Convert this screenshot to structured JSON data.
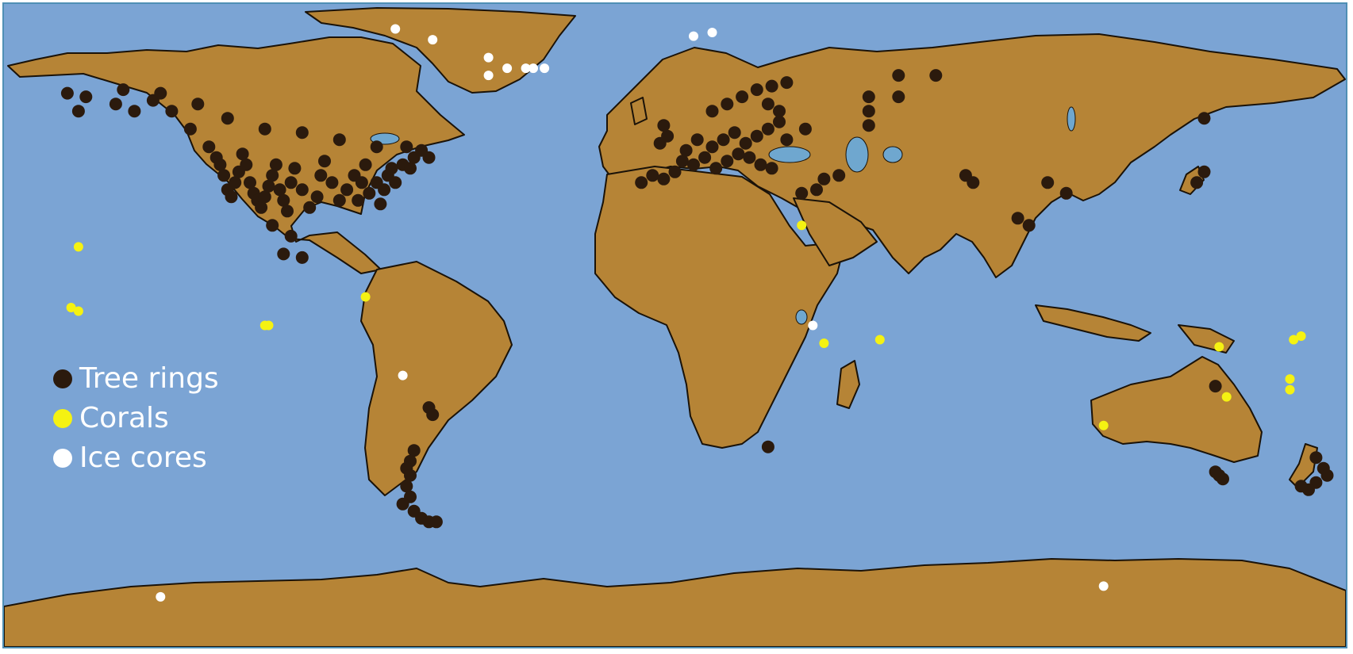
{
  "colors": {
    "ocean": "#7ba4d4",
    "land": "#b68436",
    "coast": "#1a1208",
    "lake": "#6fa7cf",
    "frame": "#4f8fb5"
  },
  "legend": {
    "items": [
      {
        "key": "tree_rings",
        "label": "Tree rings",
        "color": "#2b1a0d"
      },
      {
        "key": "corals",
        "label": "Corals",
        "color": "#f5f212"
      },
      {
        "key": "ice_cores",
        "label": "Ice cores",
        "color": "#ffffff"
      }
    ]
  },
  "chart_data": {
    "type": "scatter",
    "projection": "equirectangular",
    "series": [
      {
        "name": "Tree rings",
        "points": [
          [
            -160,
            60
          ],
          [
            -150,
            62
          ],
          [
            -145,
            60
          ],
          [
            -140,
            63
          ],
          [
            -135,
            60
          ],
          [
            -130,
            55
          ],
          [
            -125,
            50
          ],
          [
            -123,
            47
          ],
          [
            -122,
            45
          ],
          [
            -121,
            42
          ],
          [
            -120,
            38
          ],
          [
            -119,
            36
          ],
          [
            -118,
            40
          ],
          [
            -117,
            43
          ],
          [
            -116,
            48
          ],
          [
            -115,
            45
          ],
          [
            -114,
            40
          ],
          [
            -113,
            37
          ],
          [
            -112,
            35
          ],
          [
            -111,
            33
          ],
          [
            -110,
            36
          ],
          [
            -109,
            39
          ],
          [
            -108,
            42
          ],
          [
            -107,
            45
          ],
          [
            -106,
            38
          ],
          [
            -105,
            35
          ],
          [
            -104,
            32
          ],
          [
            -103,
            40
          ],
          [
            -102,
            44
          ],
          [
            -100,
            38
          ],
          [
            -98,
            33
          ],
          [
            -96,
            36
          ],
          [
            -95,
            42
          ],
          [
            -94,
            46
          ],
          [
            -92,
            40
          ],
          [
            -90,
            35
          ],
          [
            -88,
            38
          ],
          [
            -86,
            42
          ],
          [
            -85,
            35
          ],
          [
            -84,
            40
          ],
          [
            -83,
            45
          ],
          [
            -82,
            37
          ],
          [
            -80,
            40
          ],
          [
            -79,
            34
          ],
          [
            -78,
            38
          ],
          [
            -77,
            42
          ],
          [
            -76,
            44
          ],
          [
            -75,
            40
          ],
          [
            -73,
            45
          ],
          [
            -71,
            44
          ],
          [
            -70,
            47
          ],
          [
            -68,
            49
          ],
          [
            -66,
            47
          ],
          [
            -72,
            50
          ],
          [
            -80,
            50
          ],
          [
            -90,
            52
          ],
          [
            -100,
            54
          ],
          [
            -110,
            55
          ],
          [
            -120,
            58
          ],
          [
            -128,
            62
          ],
          [
            -138,
            65
          ],
          [
            -148,
            66
          ],
          [
            -158,
            64
          ],
          [
            -163,
            65
          ],
          [
            -105,
            20
          ],
          [
            -100,
            19
          ],
          [
            -103,
            25
          ],
          [
            -108,
            28
          ],
          [
            -9,
            40
          ],
          [
            -6,
            42
          ],
          [
            -3,
            41
          ],
          [
            0,
            43
          ],
          [
            2,
            46
          ],
          [
            5,
            45
          ],
          [
            8,
            47
          ],
          [
            11,
            44
          ],
          [
            14,
            46
          ],
          [
            17,
            48
          ],
          [
            20,
            47
          ],
          [
            23,
            45
          ],
          [
            26,
            44
          ],
          [
            10,
            50
          ],
          [
            13,
            52
          ],
          [
            16,
            54
          ],
          [
            19,
            51
          ],
          [
            22,
            53
          ],
          [
            25,
            55
          ],
          [
            28,
            57
          ],
          [
            10,
            60
          ],
          [
            14,
            62
          ],
          [
            18,
            64
          ],
          [
            22,
            66
          ],
          [
            26,
            67
          ],
          [
            30,
            68
          ],
          [
            25,
            62
          ],
          [
            28,
            60
          ],
          [
            -4,
            51
          ],
          [
            -2,
            53
          ],
          [
            -3,
            56
          ],
          [
            6,
            52
          ],
          [
            3,
            49
          ],
          [
            30,
            52
          ],
          [
            35,
            55
          ],
          [
            40,
            41
          ],
          [
            44,
            42
          ],
          [
            38,
            38
          ],
          [
            34,
            37
          ],
          [
            52,
            64
          ],
          [
            52,
            60
          ],
          [
            52,
            56
          ],
          [
            60,
            64
          ],
          [
            60,
            70
          ],
          [
            70,
            70
          ],
          [
            78,
            42
          ],
          [
            80,
            40
          ],
          [
            100,
            40
          ],
          [
            105,
            37
          ],
          [
            92,
            30
          ],
          [
            95,
            28
          ],
          [
            140,
            40
          ],
          [
            142,
            43
          ],
          [
            142,
            58
          ],
          [
            25,
            -34
          ],
          [
            -66,
            -23
          ],
          [
            -65,
            -25
          ],
          [
            -70,
            -35
          ],
          [
            -71,
            -38
          ],
          [
            -72,
            -40
          ],
          [
            -71,
            -42
          ],
          [
            -72,
            -45
          ],
          [
            -71,
            -48
          ],
          [
            -73,
            -50
          ],
          [
            -70,
            -52
          ],
          [
            -68,
            -54
          ],
          [
            -66,
            -55
          ],
          [
            -64,
            -55
          ],
          [
            172,
            -37
          ],
          [
            174,
            -40
          ],
          [
            175,
            -42
          ],
          [
            172,
            -44
          ],
          [
            170,
            -46
          ],
          [
            168,
            -45
          ],
          [
            146,
            -42
          ],
          [
            147,
            -43
          ],
          [
            145,
            -41
          ],
          [
            145,
            -17
          ]
        ]
      },
      {
        "name": "Corals",
        "points": [
          [
            -160,
            22
          ],
          [
            -162,
            5
          ],
          [
            -160,
            4
          ],
          [
            -110,
            0
          ],
          [
            -109,
            0
          ],
          [
            -83,
            8
          ],
          [
            34,
            28
          ],
          [
            40,
            -5
          ],
          [
            55,
            -4
          ],
          [
            146,
            -6
          ],
          [
            148,
            -20
          ],
          [
            115,
            -28
          ],
          [
            166,
            -4
          ],
          [
            168,
            -3
          ],
          [
            165,
            -15
          ],
          [
            165,
            -18
          ]
        ]
      },
      {
        "name": "Ice cores",
        "points": [
          [
            -75,
            83
          ],
          [
            -65,
            80
          ],
          [
            -50,
            70
          ],
          [
            -45,
            72
          ],
          [
            -40,
            72
          ],
          [
            -38,
            72
          ],
          [
            -35,
            72
          ],
          [
            -50,
            75
          ],
          [
            5,
            81
          ],
          [
            10,
            82
          ],
          [
            37,
            0
          ],
          [
            -73,
            -14
          ],
          [
            -138,
            -76
          ],
          [
            115,
            -73
          ]
        ]
      }
    ]
  }
}
